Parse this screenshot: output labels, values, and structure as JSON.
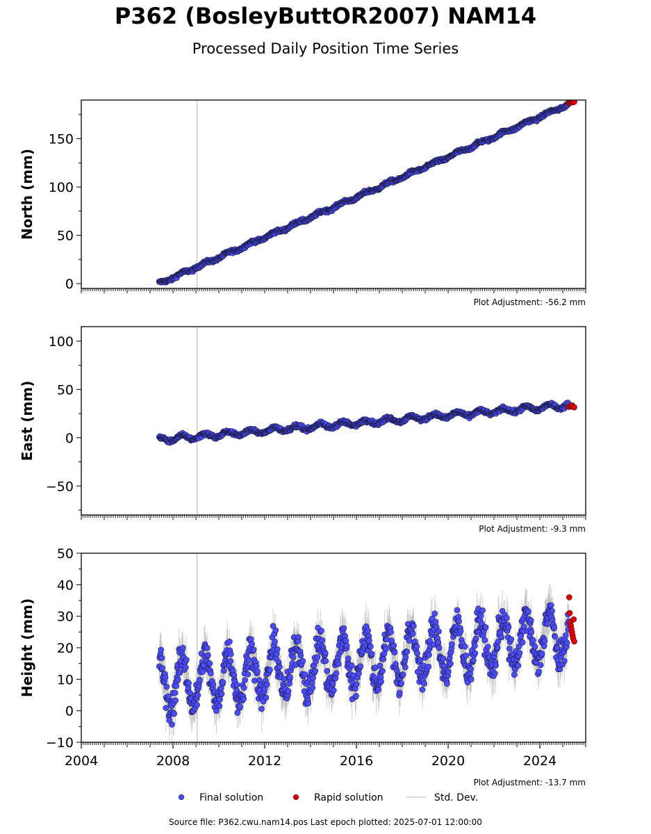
{
  "title": "P362 (BosleyButtOR2007) NAM14",
  "subtitle": "Processed Daily Position Time Series",
  "footer": "Source file: P362.cwu.nam14.pos  Last epoch plotted: 2025-07-01 12:00:00",
  "colors": {
    "final": "#4b4bff",
    "final_edge": "#1a1a3a",
    "rapid": "#e00000",
    "stddev": "#9a9a9a",
    "vline": "#cccccc"
  },
  "legend": [
    {
      "label": "Final solution",
      "marker": "final"
    },
    {
      "label": "Rapid solution",
      "marker": "rapid"
    },
    {
      "label": "Std. Dev.",
      "marker": "stddev"
    }
  ],
  "chart_data": [
    {
      "type": "scatter",
      "name": "north",
      "ylabel": "North (mm)",
      "ylim": [
        -5,
        190
      ],
      "yticks": [
        0,
        50,
        100,
        150
      ],
      "xlim": [
        2004,
        2026
      ],
      "adjustment": "Plot Adjustment: -56.2 mm",
      "vline_x": 2009.05,
      "start": 2007.4,
      "end_final": 2025.28,
      "end_rapid": 2025.5,
      "start_value": 0,
      "rate": 10.4,
      "seasonal_amp": 1.2,
      "noise": 1.2,
      "stddev": 1.5,
      "rapid_values": [
        187,
        188,
        187.5,
        188.5,
        187.8,
        188.2
      ]
    },
    {
      "type": "scatter",
      "name": "east",
      "ylabel": "East (mm)",
      "ylim": [
        -80,
        115
      ],
      "yticks": [
        -50,
        0,
        50,
        100
      ],
      "xlim": [
        2004,
        2026
      ],
      "adjustment": "Plot Adjustment: -9.3 mm",
      "vline_x": 2009.05,
      "start": 2007.4,
      "end_final": 2025.28,
      "end_rapid": 2025.5,
      "start_value": -2,
      "rate": 2.0,
      "seasonal_amp": 2.5,
      "noise": 1.3,
      "stddev": 1.5,
      "rapid_values": [
        32,
        33,
        32.5,
        33.5,
        32,
        31.5
      ]
    },
    {
      "type": "scatter",
      "name": "height",
      "ylabel": "Height (mm)",
      "ylim": [
        -10,
        50
      ],
      "yticks": [
        -10,
        0,
        10,
        20,
        30,
        40,
        50
      ],
      "xlim": [
        2004,
        2026
      ],
      "xticks": [
        2004,
        2008,
        2012,
        2016,
        2020,
        2024
      ],
      "adjustment": "Plot Adjustment: -13.7 mm",
      "vline_x": 2009.05,
      "start": 2007.4,
      "end_final": 2025.28,
      "end_rapid": 2025.5,
      "start_value": 8,
      "rate": 0.9,
      "seasonal_amp": 8,
      "noise": 3.5,
      "stddev": 5,
      "rapid_values": [
        36,
        31,
        28,
        27,
        26,
        25,
        24,
        23,
        29,
        22
      ]
    }
  ]
}
